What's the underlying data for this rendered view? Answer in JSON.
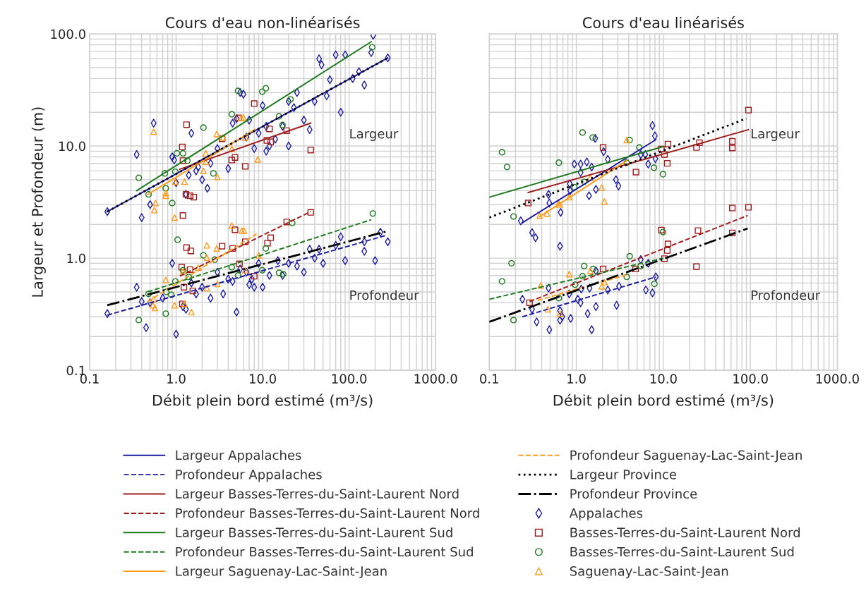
{
  "chart_data": [
    {
      "type": "scatter",
      "title": "Cours d'eau non-linéarisés",
      "xlabel": "Débit plein bord estimé (m³/s)",
      "ylabel": "Largeur et Profondeur (m)",
      "log": "xy",
      "grid": true,
      "legend": "bottom",
      "xlim": [
        0.1,
        1000
      ],
      "xticks": [
        0.1,
        {
          "value": 1,
          "label": "1.0"
        },
        {
          "value": 10,
          "label": "10.0"
        },
        {
          "value": 100,
          "label": "100.0"
        },
        {
          "value": 1000,
          "label": "1000.0"
        }
      ],
      "ylim": [
        0.1,
        100
      ],
      "yticks": [
        0.1,
        {
          "value": 1,
          "label": "1.0"
        },
        {
          "value": 10,
          "label": "10.0"
        },
        {
          "value": 100,
          "label": "100.0"
        }
      ],
      "annotations": [
        "Largeur",
        "Profondeur"
      ],
      "series": [
        {
          "name": "Largeur Appalaches",
          "type": "line",
          "line_style": "solid",
          "color": "#1c1ca0",
          "x": [
            0.16,
            280
          ],
          "values": [
            2.6,
            61
          ]
        },
        {
          "name": "Profondeur Appalaches",
          "type": "line",
          "line_style": "dashed",
          "color": "#1c1ca0",
          "x": [
            0.16,
            270
          ],
          "values": [
            0.31,
            1.6
          ]
        },
        {
          "name": "Largeur Basses-Terres-du-Saint-Laurent Nord",
          "type": "line",
          "line_style": "solid",
          "color": "#a01c1c",
          "x": [
            1.1,
            36
          ],
          "values": [
            6.2,
            16
          ]
        },
        {
          "name": "Profondeur Basses-Terres-du-Saint-Laurent Nord",
          "type": "line",
          "line_style": "dashed",
          "color": "#a01c1c",
          "x": [
            1.1,
            36
          ],
          "values": [
            0.69,
            2.6
          ]
        },
        {
          "name": "Largeur Basses-Terres-du-Saint-Laurent Sud",
          "type": "line",
          "line_style": "solid",
          "color": "#1e7a1e",
          "x": [
            0.35,
            180
          ],
          "values": [
            4.0,
            85
          ]
        },
        {
          "name": "Profondeur Basses-Terres-du-Saint-Laurent Sud",
          "type": "line",
          "line_style": "dashed",
          "color": "#1e7a1e",
          "x": [
            0.47,
            180
          ],
          "values": [
            0.5,
            2.2
          ]
        },
        {
          "name": "Largeur Saguenay-Lac-Saint-Jean",
          "type": "line",
          "line_style": "solid",
          "color": "#ff9a1a",
          "x": [
            0.47,
            8.1
          ],
          "values": [
            3.7,
            14
          ]
        },
        {
          "name": "Profondeur Saguenay-Lac-Saint-Jean",
          "type": "line",
          "line_style": "dashed",
          "color": "#ff9a1a",
          "x": [
            0.47,
            8.5
          ],
          "values": [
            0.41,
            1.64
          ]
        },
        {
          "name": "Largeur Province",
          "type": "line",
          "line_style": "dotted",
          "color": "#000000",
          "x": [
            0.16,
            280
          ],
          "values": [
            2.6,
            61
          ]
        },
        {
          "name": "Profondeur Province",
          "type": "line",
          "line_style": "dashdot",
          "color": "#000000",
          "x": [
            0.16,
            270
          ],
          "values": [
            0.38,
            1.73
          ]
        },
        {
          "name": "Appalaches",
          "marker": "diamond",
          "color": "#1c1ca0",
          "x": [
            0.16,
            0.35,
            0.4,
            0.55,
            0.5,
            0.9,
            0.95,
            1.0,
            1.3,
            1.4,
            1.5,
            1.7,
            1.8,
            2,
            2.3,
            2.5,
            3,
            4,
            4.5,
            5,
            5.5,
            6,
            6.5,
            7,
            8,
            9,
            10,
            11,
            11,
            12,
            14,
            17,
            20,
            20,
            23,
            25,
            30,
            35,
            40,
            45,
            48,
            55,
            60,
            70,
            80,
            90,
            110,
            130,
            150,
            180,
            190,
            280,
            0.16,
            0.35,
            0.4,
            0.45,
            0.5,
            0.7,
            0.9,
            1.0,
            1.2,
            1.3,
            1.5,
            1.7,
            2,
            2.5,
            3,
            3.5,
            4,
            4.5,
            5,
            5.5,
            6.5,
            7,
            7.5,
            8,
            9,
            10,
            12,
            15,
            17,
            20,
            25,
            30,
            35,
            40,
            45,
            50,
            70,
            80,
            90,
            150,
            150,
            200,
            230,
            280
          ],
          "values": [
            2.6,
            8.4,
            2.3,
            16,
            3,
            8,
            7.5,
            4.7,
            3.7,
            5.5,
            13,
            6,
            6.5,
            5,
            4.2,
            7,
            9.5,
            6.3,
            16,
            17.5,
            30,
            29,
            12,
            17,
            9.5,
            13,
            23,
            15,
            9,
            10,
            11.5,
            15,
            10,
            25,
            22,
            30,
            17,
            14,
            25,
            60,
            53,
            28,
            39,
            65,
            20,
            65,
            40,
            46,
            35,
            68,
            97,
            61,
            0.32,
            0.55,
            0.41,
            0.24,
            0.4,
            0.44,
            0.9,
            0.21,
            0.37,
            0.35,
            0.6,
            0.48,
            0.55,
            0.44,
            0.75,
            0.48,
            0.65,
            0.62,
            0.33,
            0.8,
            0.75,
            0.58,
            0.65,
            0.55,
            0.9,
            0.55,
            0.7,
            0.95,
            0.7,
            0.9,
            0.85,
            0.75,
            1.2,
            1.0,
            1.2,
            0.9,
            1.3,
            1.55,
            0.95,
            1.15,
            1.4,
            0.95,
            1.7,
            1.4
          ]
        },
        {
          "name": "Basses-Terres-du-Saint-Laurent Nord",
          "marker": "square",
          "color": "#a01c1c",
          "x": [
            1.32,
            1.18,
            1.2,
            1.45,
            1.6,
            1.3,
            1.2,
            3.4,
            5.3,
            8,
            4.8,
            4.4,
            6.3,
            12,
            11.2,
            12.4,
            19,
            36,
            1.32,
            1.48,
            1.16,
            1.45,
            1.23,
            1.56,
            1.18,
            3.4,
            4.8,
            4.5,
            6.3,
            5.4,
            8,
            11.4,
            12.4,
            19,
            36
          ],
          "values": [
            15.5,
            9.8,
            7.4,
            3.6,
            3.5,
            3.7,
            2.4,
            11.6,
            17.8,
            23.9,
            7.9,
            7.5,
            6.6,
            14.2,
            11.2,
            10.9,
            13.7,
            9.2,
            1.24,
            1.16,
            0.83,
            0.79,
            0.55,
            0.51,
            0.39,
            1.28,
            1.79,
            1.22,
            1.4,
            0.89,
            0.69,
            1.36,
            1.52,
            2.1,
            2.56
          ]
        },
        {
          "name": "Basses-Terres-du-Saint-Laurent Sud",
          "marker": "circle",
          "color": "#1e7a1e",
          "x": [
            0.37,
            0.48,
            0.74,
            0.76,
            0.98,
            1.02,
            1.2,
            1.35,
            2.07,
            2.7,
            4.4,
            5.2,
            9.9,
            10.9,
            15.5,
            17,
            21,
            185,
            0.9,
            0.37,
            0.48,
            0.76,
            0.77,
            0.98,
            1.04,
            0.88,
            1.2,
            1.4,
            2.07,
            2.8,
            4.4,
            5.2,
            10.9,
            9.9,
            15.5,
            17.3,
            22,
            188
          ],
          "values": [
            5.2,
            3.7,
            5.7,
            4.2,
            5.9,
            8.6,
            8.6,
            7.4,
            14.6,
            5.7,
            19.2,
            31,
            30.5,
            32.7,
            18.4,
            15.4,
            26,
            76,
            3.1,
            0.28,
            0.48,
            0.32,
            0.5,
            0.62,
            1.46,
            0.47,
            0.78,
            0.68,
            1.06,
            0.97,
            0.83,
            0.7,
            1.22,
            0.78,
            0.74,
            0.72,
            2.06,
            2.5
          ]
        },
        {
          "name": "Saguenay-Lac-Saint-Jean",
          "marker": "triangle",
          "color": "#ff9a1a",
          "x": [
            0.55,
            0.58,
            0.76,
            0.76,
            0.98,
            1.25,
            2.2,
            2.07,
            2.2,
            2.95,
            3.0,
            3.5,
            4.4,
            5.65,
            6.0,
            6.3,
            8.8,
            0.56,
            0.96,
            0.55,
            0.54,
            0.57,
            0.76,
            0.96,
            1.25,
            1.5,
            1.2,
            1.8,
            2.27,
            2.27,
            2.27,
            2.95,
            3.0,
            4.4,
            5.75,
            6.1,
            6.3,
            9
          ],
          "values": [
            13.4,
            3.1,
            3.8,
            3.6,
            4.8,
            4.8,
            8.6,
            6.0,
            7.2,
            12.8,
            5.3,
            11.9,
            9.4,
            17.8,
            18,
            11.9,
            7.6,
            2.68,
            2.3,
            0.43,
            0.38,
            0.36,
            0.64,
            0.38,
            0.39,
            0.33,
            0.76,
            0.82,
            1.3,
            1.01,
            0.54,
            1.22,
            0.59,
            1.95,
            1.76,
            1.76,
            0.78,
            1.06
          ]
        }
      ]
    },
    {
      "type": "scatter",
      "title": "Cours d'eau linéarisés",
      "xlabel": "Débit plein bord estimé (m³/s)",
      "log": "xy",
      "grid": true,
      "tick_labels": "x",
      "xlim": [
        0.1,
        1000
      ],
      "xticks": [
        0.1,
        {
          "value": 1,
          "label": "1.0"
        },
        {
          "value": 10,
          "label": "10.0"
        },
        {
          "value": 100,
          "label": "100.0"
        },
        {
          "value": 1000,
          "label": "1000.0"
        }
      ],
      "ylim": [
        0.1,
        100
      ],
      "yticks": [
        {
          "value": 0.1,
          "label": null
        },
        {
          "value": 1,
          "label": null
        },
        {
          "value": 10,
          "label": null
        },
        {
          "value": 100,
          "label": null
        }
      ],
      "annotations": [
        "Largeur",
        "Profondeur"
      ],
      "series": [
        {
          "name": "Largeur Appalaches",
          "type": "line",
          "line_style": "solid",
          "color": "#1c1ca0",
          "x": [
            0.24,
            8.2
          ],
          "values": [
            2.07,
            11.4
          ]
        },
        {
          "name": "Profondeur Appalaches",
          "type": "line",
          "line_style": "dashed",
          "color": "#1c1ca0",
          "x": [
            0.24,
            8.2
          ],
          "values": [
            0.3,
            0.68
          ]
        },
        {
          "name": "Largeur Basses-Terres-du-Saint-Laurent Nord",
          "type": "line",
          "line_style": "solid",
          "color": "#a01c1c",
          "x": [
            0.28,
            95
          ],
          "values": [
            3.85,
            14
          ]
        },
        {
          "name": "Profondeur Basses-Terres-du-Saint-Laurent Nord",
          "type": "line",
          "line_style": "dashed",
          "color": "#a01c1c",
          "x": [
            0.29,
            93
          ],
          "values": [
            0.41,
            2.4
          ]
        },
        {
          "name": "Largeur Basses-Terres-du-Saint-Laurent Sud",
          "type": "line",
          "line_style": "solid",
          "color": "#1e7a1e",
          "x": [
            0.1,
            10
          ],
          "values": [
            3.5,
            9.9
          ]
        },
        {
          "name": "Profondeur Basses-Terres-du-Saint-Laurent Sud",
          "type": "line",
          "line_style": "dashed",
          "color": "#1e7a1e",
          "x": [
            0.1,
            10
          ],
          "values": [
            0.43,
            1.0
          ]
        },
        {
          "name": "Largeur Saguenay-Lac-Saint-Jean",
          "type": "line",
          "line_style": "solid",
          "color": "#ff9a1a",
          "x": [
            0.38,
            3.8
          ],
          "values": [
            2.35,
            7.4
          ]
        },
        {
          "name": "Profondeur Saguenay-Lac-Saint-Jean",
          "type": "line",
          "line_style": "dashed",
          "color": "#ff9a1a",
          "x": [
            0.36,
            3.8
          ],
          "values": [
            0.42,
            0.71
          ]
        },
        {
          "name": "Largeur Province",
          "type": "line",
          "line_style": "dotted",
          "color": "#000000",
          "x": [
            0.1,
            90
          ],
          "values": [
            2.3,
            17.6
          ]
        },
        {
          "name": "Profondeur Province",
          "type": "line",
          "line_style": "dashdot",
          "color": "#000000",
          "x": [
            0.1,
            93
          ],
          "values": [
            0.27,
            1.84
          ]
        },
        {
          "name": "Appalaches",
          "marker": "diamond",
          "color": "#1c1ca0",
          "x": [
            0.48,
            0.49,
            0.84,
            0.85,
            0.95,
            1.12,
            1.12,
            1.32,
            1.5,
            1.4,
            1.68,
            1.65,
            2.06,
            2.3,
            2.85,
            3.05,
            5.5,
            6.2,
            6.7,
            8.1,
            7.5,
            8,
            0.23,
            0.31,
            0.34,
            0.66,
            0.65,
            0.24,
            0.31,
            0.35,
            0.48,
            0.49,
            0.65,
            0.65,
            0.69,
            0.86,
            0.83,
            1.04,
            1.12,
            1.14,
            1.35,
            1.42,
            1.5,
            1.68,
            1.68,
            2.3,
            2.9,
            3.1,
            5.5,
            6.3,
            6.7,
            7.5,
            8.2
          ],
          "values": [
            3.7,
            3.1,
            4.6,
            4.0,
            6.9,
            6.9,
            5.8,
            7.2,
            6.5,
            3.6,
            4.1,
            11.7,
            8.9,
            7.6,
            5.0,
            4.4,
            8.4,
            8.4,
            6.9,
            7.7,
            15.2,
            12.3,
            2.15,
            1.69,
            1.52,
            2.56,
            1.28,
            0.43,
            0.35,
            0.27,
            0.54,
            0.23,
            0.34,
            0.28,
            0.3,
            0.29,
            0.48,
            0.43,
            0.4,
            0.53,
            0.32,
            0.54,
            0.23,
            0.37,
            0.77,
            0.52,
            0.38,
            0.56,
            0.97,
            0.52,
            0.9,
            0.49,
            0.68
          ]
        },
        {
          "name": "Basses-Terres-du-Saint-Laurent Nord",
          "marker": "square",
          "color": "#a01c1c",
          "x": [
            0.28,
            2.03,
            4.85,
            9.5,
            11.3,
            10.3,
            11.1,
            24,
            26,
            62,
            62,
            95,
            0.29,
            2.03,
            4.8,
            9.5,
            11.3,
            11.1,
            10.3,
            25,
            24,
            62,
            62,
            95
          ],
          "values": [
            3.1,
            9.7,
            5.85,
            9.4,
            10.4,
            8.4,
            7.0,
            9.7,
            10.7,
            9.6,
            11.0,
            20.9,
            0.4,
            0.8,
            0.8,
            1.78,
            1.34,
            1.17,
            0.99,
            1.76,
            0.84,
            2.8,
            1.68,
            2.84
          ]
        },
        {
          "name": "Basses-Terres-du-Saint-Laurent Sud",
          "marker": "circle",
          "color": "#1e7a1e",
          "x": [
            0.14,
            0.16,
            0.63,
            0.95,
            1.18,
            1.54,
            1.23,
            4.1,
            5.3,
            7.8,
            9.9,
            3.8,
            0.19,
            0.18,
            0.14,
            0.19,
            0.63,
            0.97,
            1.18,
            1.23,
            1.56,
            4.1,
            3.8,
            5.5,
            7.9,
            9.9
          ],
          "values": [
            8.8,
            6.5,
            7.1,
            4.3,
            13.2,
            11.9,
            4.8,
            11.3,
            9.7,
            6.4,
            5.6,
            7.1,
            2.35,
            0.9,
            0.62,
            0.28,
            0.44,
            0.58,
            0.69,
            0.85,
            0.8,
            1.04,
            0.68,
            0.85,
            0.59,
            1.71
          ]
        },
        {
          "name": "Saguenay-Lac-Saint-Jean",
          "marker": "triangle",
          "color": "#ff9a1a",
          "x": [
            3.8,
            1.96,
            2.1,
            1.45,
            0.83,
            0.63,
            0.38,
            0.46,
            0.64,
            0.39,
            0.47,
            0.65,
            0.83,
            1.45,
            1.96,
            2.1
          ],
          "values": [
            11.3,
            4.25,
            3.2,
            5.2,
            3.5,
            3.1,
            2.4,
            2.5,
            3.0,
            0.57,
            0.35,
            0.32,
            0.72,
            0.77,
            0.56,
            0.61
          ]
        }
      ]
    }
  ]
}
